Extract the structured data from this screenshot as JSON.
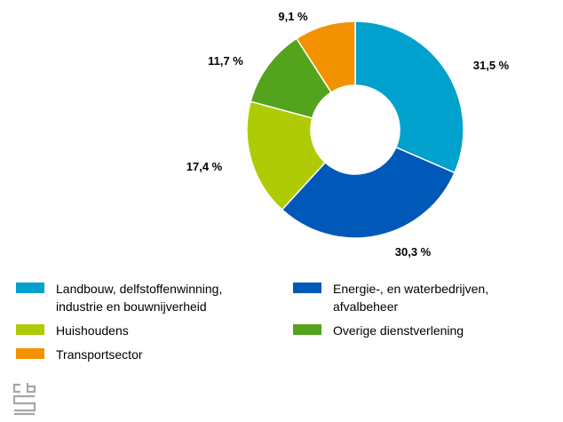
{
  "chart_data": {
    "type": "pie",
    "donut": true,
    "title": "",
    "slices": [
      {
        "label": "Landbouw, delfstoffenwinning, industrie en bouwnijverheid",
        "value": 31.5,
        "display": "31,5 %",
        "color": "#00a1cd"
      },
      {
        "label": "Energie-, en waterbedrijven, afvalbeheer",
        "value": 30.3,
        "display": "30,3 %",
        "color": "#0058b8"
      },
      {
        "label": "Huishoudens",
        "value": 17.4,
        "display": "17,4 %",
        "color": "#afcb05"
      },
      {
        "label": "Overige dienstverlening",
        "value": 11.7,
        "display": "11,7 %",
        "color": "#53a31d"
      },
      {
        "label": "Transportsector",
        "value": 9.1,
        "display": "9,1 %",
        "color": "#f39200"
      }
    ],
    "legend_placement": "bottom"
  },
  "legend": {
    "items": [
      {
        "lines": [
          "Landbouw, delfstoffenwinning,",
          "industrie en bouwnijverheid"
        ],
        "color": "#00a1cd"
      },
      {
        "lines": [
          "Energie-, en waterbedrijven,",
          "afvalbeheer"
        ],
        "color": "#0058b8"
      },
      {
        "lines": [
          "Huishoudens"
        ],
        "color": "#afcb05"
      },
      {
        "lines": [
          "Overige dienstverlening"
        ],
        "color": "#53a31d"
      },
      {
        "lines": [
          "Transportsector"
        ],
        "color": "#f39200"
      }
    ]
  },
  "logo": {
    "name": "cbs-logo",
    "color": "#a6a6a6"
  }
}
